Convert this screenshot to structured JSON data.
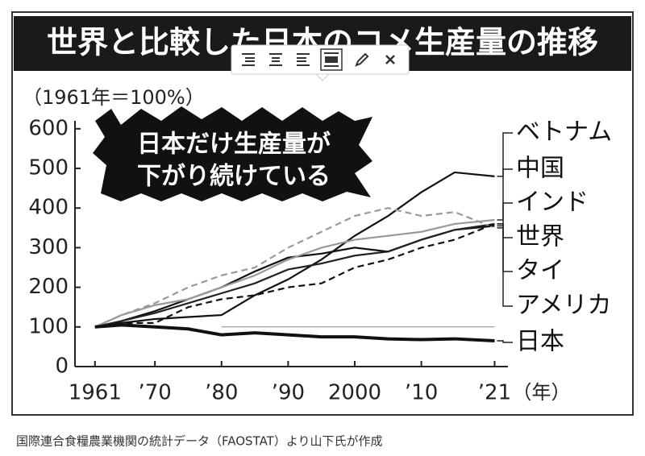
{
  "chart_data": {
    "type": "line",
    "title": "世界と比較した日本のコメ生産量の推移",
    "subtitle": "（1961年＝100%）",
    "annotation": [
      "日本だけ生産量が",
      "下がり続けている"
    ],
    "x_unit": "（年）",
    "source": "国際連合食糧農業機関の統計データ（FAOSTAT）より山下氏が作成",
    "x": [
      1961,
      1965,
      1970,
      1975,
      1980,
      1985,
      1990,
      1995,
      2000,
      2005,
      2010,
      2015,
      2021
    ],
    "xlim": [
      1958,
      2023
    ],
    "xticks": [
      {
        "value": 1961,
        "label": "1961"
      },
      {
        "value": 1970,
        "label": "’70"
      },
      {
        "value": 1980,
        "label": "’80"
      },
      {
        "value": 1990,
        "label": "’90"
      },
      {
        "value": 2000,
        "label": "2000"
      },
      {
        "value": 2010,
        "label": "’10"
      },
      {
        "value": 2021,
        "label": "’21"
      }
    ],
    "ylim": [
      0,
      620
    ],
    "yticks": [
      0,
      100,
      200,
      300,
      400,
      500,
      600
    ],
    "reference_line": 100,
    "series": [
      {
        "name": "ベトナム",
        "color": "#111111",
        "style": "solid",
        "values": [
          100,
          110,
          120,
          125,
          130,
          180,
          220,
          270,
          330,
          380,
          440,
          490,
          480
        ]
      },
      {
        "name": "中国",
        "color": "#111111",
        "style": "solid",
        "values": [
          100,
          115,
          140,
          170,
          200,
          240,
          275,
          285,
          300,
          290,
          320,
          345,
          355
        ]
      },
      {
        "name": "インド",
        "color": "#999999",
        "style": "solid",
        "values": [
          100,
          130,
          155,
          170,
          200,
          230,
          270,
          300,
          320,
          330,
          340,
          360,
          370
        ]
      },
      {
        "name": "世界",
        "color": "#222222",
        "style": "solid",
        "values": [
          100,
          115,
          135,
          160,
          185,
          210,
          245,
          260,
          280,
          290,
          320,
          345,
          360
        ]
      },
      {
        "name": "タイ",
        "color": "#999999",
        "style": "dashed",
        "values": [
          100,
          130,
          160,
          200,
          230,
          250,
          300,
          340,
          380,
          400,
          380,
          390,
          350
        ]
      },
      {
        "name": "アメリカ",
        "color": "#111111",
        "style": "dashed",
        "values": [
          100,
          110,
          110,
          150,
          170,
          180,
          200,
          210,
          250,
          270,
          300,
          320,
          360
        ]
      },
      {
        "name": "日本",
        "color": "#111111",
        "style": "bold",
        "values": [
          100,
          105,
          100,
          95,
          80,
          85,
          80,
          75,
          75,
          70,
          68,
          70,
          65
        ]
      }
    ]
  }
}
